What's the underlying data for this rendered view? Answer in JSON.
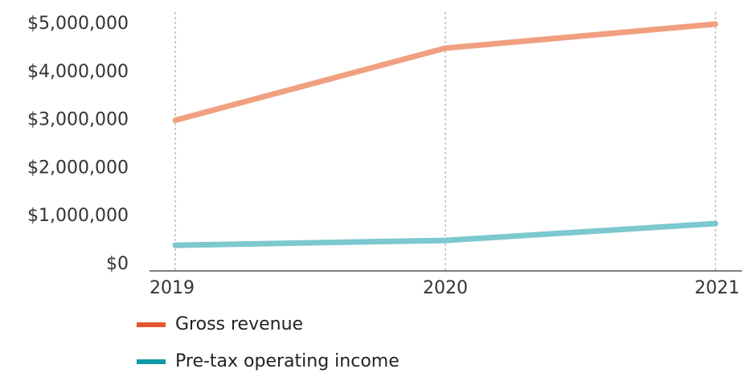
{
  "chart_data": {
    "type": "line",
    "x": [
      "2019",
      "2020",
      "2021"
    ],
    "series": [
      {
        "name": "Gross revenue",
        "values": [
          3000000,
          4500000,
          5000000
        ],
        "line_color": "#F0A080",
        "legend_color": "#E4572E"
      },
      {
        "name": "Pre-tax operating income",
        "values": [
          400000,
          500000,
          850000
        ],
        "line_color": "#7CC8CF",
        "legend_color": "#0E9AA7"
      }
    ],
    "yticks": [
      0,
      1000000,
      2000000,
      3000000,
      4000000,
      5000000
    ],
    "ytick_labels": [
      "$0",
      "$1,000,000",
      "$2,000,000",
      "$3,000,000",
      "$4,000,000",
      "$5,000,000"
    ],
    "ylim": [
      0,
      5000000
    ],
    "grid": "vertical dashed",
    "legend_position": "bottom-left"
  }
}
